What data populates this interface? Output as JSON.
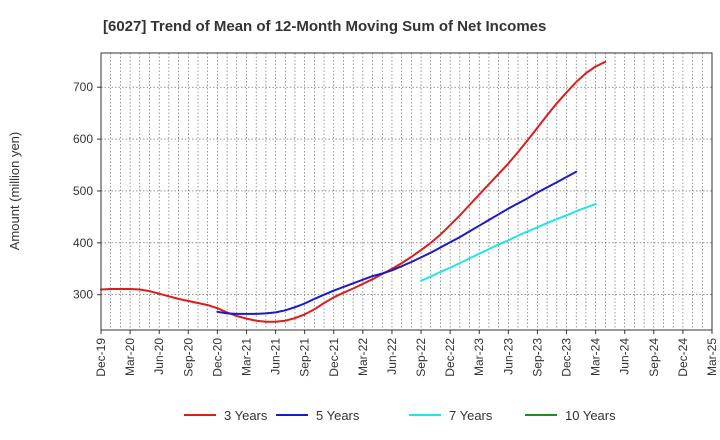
{
  "chart_data": {
    "type": "line",
    "title": "[6027]  Trend of Mean of 12-Month Moving Sum of Net Incomes",
    "xlabel": "",
    "ylabel": "Amount (million yen)",
    "ylim": [
      232,
      766
    ],
    "yticks": [
      300,
      400,
      500,
      600,
      700
    ],
    "x_tick_labels": [
      "Dec-19",
      "Mar-20",
      "Jun-20",
      "Sep-20",
      "Dec-20",
      "Mar-21",
      "Jun-21",
      "Sep-21",
      "Dec-21",
      "Mar-22",
      "Jun-22",
      "Sep-22",
      "Dec-22",
      "Mar-23",
      "Jun-23",
      "Sep-23",
      "Dec-23",
      "Mar-24",
      "Jun-24",
      "Sep-24",
      "Dec-24",
      "Mar-25"
    ],
    "grid": true,
    "legend_position": "bottom",
    "series": [
      {
        "name": "3 Years",
        "color": "#dd1c1c",
        "start_index": 0,
        "values": [
          310,
          311,
          311,
          311,
          310,
          307,
          302,
          297,
          292,
          288,
          284,
          280,
          274,
          266,
          259,
          254,
          250,
          248,
          248,
          250,
          255,
          262,
          272,
          284,
          295,
          304,
          312,
          321,
          330,
          340,
          350,
          361,
          373,
          386,
          400,
          416,
          434,
          453,
          473,
          493,
          513,
          533,
          553,
          575,
          598,
          622,
          646,
          669,
          690,
          710,
          727,
          740,
          749
        ]
      },
      {
        "name": "5 Years",
        "color": "#1a1acc",
        "start_index": 12,
        "values": [
          267,
          264,
          263,
          263,
          263,
          264,
          266,
          270,
          276,
          283,
          292,
          300,
          308,
          315,
          322,
          329,
          336,
          341,
          347,
          355,
          363,
          372,
          381,
          391,
          401,
          411,
          422,
          433,
          444,
          455,
          466,
          476,
          486,
          497,
          507,
          517,
          527,
          537
        ]
      },
      {
        "name": "7 Years",
        "color": "#22e5e5",
        "start_index": 33,
        "values": [
          327,
          335,
          344,
          352,
          361,
          370,
          379,
          388,
          397,
          405,
          414,
          422,
          430,
          438,
          446,
          453,
          461,
          468,
          475
        ]
      },
      {
        "name": "10 Years",
        "color": "#228b22",
        "start_index": 0,
        "values": []
      }
    ]
  }
}
